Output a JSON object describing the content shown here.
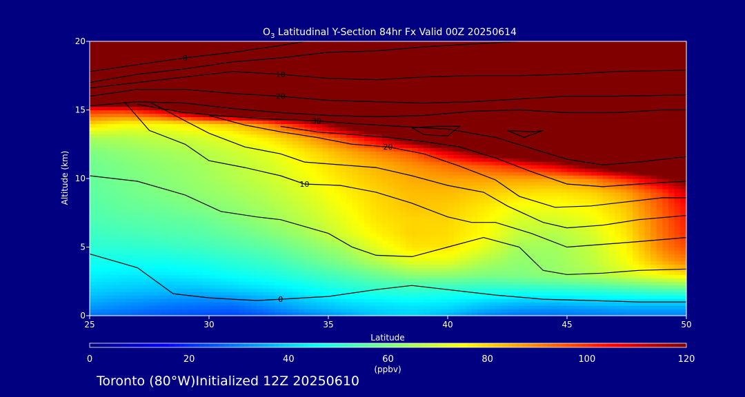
{
  "colors": {
    "background": "#000080",
    "text": "#ffffff",
    "contour": "#000000"
  },
  "chart_data": {
    "type": "heatmap",
    "title_prefix": "O",
    "title_sub": "3",
    "title_suffix": " Latitudinal Y-Section 84hr  Fx Valid 00Z 20250614",
    "xlabel": "Latitude",
    "ylabel": "Altitude (km)",
    "xlim": [
      25,
      50
    ],
    "ylim": [
      0,
      20
    ],
    "xticks": [
      25,
      30,
      35,
      40,
      45,
      50
    ],
    "yticks": [
      0,
      5,
      10,
      15,
      20
    ],
    "x": [
      25,
      26.5,
      28,
      29.5,
      31,
      32.5,
      34,
      35.5,
      37,
      38.5,
      40,
      41.5,
      43,
      44.5,
      46,
      47.5,
      49,
      50
    ],
    "y": [
      0,
      0.5,
      1,
      1.5,
      2,
      2.5,
      3,
      4,
      5,
      6,
      7,
      8,
      9,
      10,
      11,
      12,
      13,
      14,
      15,
      16,
      17,
      18,
      19,
      20
    ],
    "values": [
      [
        28,
        27,
        25,
        24,
        23,
        25,
        29,
        33,
        38,
        40,
        36,
        30,
        28,
        28,
        29,
        30,
        30,
        30
      ],
      [
        32,
        30,
        28,
        27,
        26,
        30,
        35,
        38,
        40,
        41,
        40,
        36,
        33,
        32,
        33,
        34,
        34,
        34
      ],
      [
        35,
        33,
        31,
        30,
        30,
        34,
        38,
        41,
        43,
        44,
        43,
        40,
        38,
        38,
        39,
        40,
        40,
        40
      ],
      [
        38,
        36,
        35,
        34,
        35,
        38,
        42,
        45,
        47,
        48,
        47,
        46,
        45,
        45,
        46,
        47,
        48,
        48
      ],
      [
        40,
        39,
        38,
        38,
        40,
        42,
        45,
        48,
        51,
        52,
        51,
        50,
        50,
        51,
        52,
        54,
        56,
        57
      ],
      [
        42,
        41,
        40,
        41,
        43,
        45,
        48,
        51,
        54,
        56,
        56,
        55,
        56,
        57,
        59,
        62,
        65,
        67
      ],
      [
        44,
        43,
        43,
        44,
        46,
        48,
        51,
        54,
        58,
        62,
        62,
        60,
        60,
        62,
        65,
        70,
        75,
        78
      ],
      [
        47,
        47,
        47,
        48,
        50,
        52,
        56,
        60,
        66,
        72,
        72,
        66,
        62,
        63,
        67,
        74,
        85,
        90
      ],
      [
        50,
        50,
        51,
        52,
        54,
        56,
        60,
        64,
        72,
        78,
        78,
        72,
        64,
        64,
        68,
        76,
        90,
        96
      ],
      [
        52,
        53,
        54,
        55,
        57,
        60,
        64,
        70,
        76,
        80,
        79,
        75,
        68,
        66,
        70,
        78,
        92,
        100
      ],
      [
        54,
        55,
        56,
        57,
        60,
        63,
        67,
        72,
        78,
        80,
        80,
        76,
        70,
        70,
        73,
        80,
        93,
        102
      ],
      [
        55,
        57,
        58,
        60,
        62,
        65,
        69,
        74,
        79,
        82,
        81,
        78,
        74,
        74,
        76,
        82,
        95,
        104
      ],
      [
        56,
        58,
        60,
        62,
        64,
        67,
        71,
        76,
        80,
        83,
        83,
        81,
        79,
        78,
        80,
        86,
        98,
        110
      ],
      [
        57,
        59,
        61,
        63,
        66,
        69,
        73,
        78,
        82,
        85,
        86,
        86,
        86,
        86,
        90,
        100,
        115,
        125
      ],
      [
        58,
        60,
        62,
        64,
        67,
        70,
        75,
        80,
        84,
        88,
        92,
        96,
        102,
        110,
        125,
        140,
        150,
        150
      ],
      [
        60,
        62,
        64,
        66,
        69,
        72,
        78,
        84,
        90,
        96,
        110,
        125,
        140,
        150,
        160,
        160,
        160,
        160
      ],
      [
        65,
        66,
        68,
        70,
        73,
        78,
        85,
        95,
        110,
        130,
        150,
        160,
        170,
        170,
        170,
        170,
        170,
        170
      ],
      [
        80,
        75,
        75,
        78,
        82,
        90,
        105,
        125,
        145,
        160,
        175,
        180,
        180,
        180,
        180,
        180,
        180,
        180
      ],
      [
        100,
        100,
        110,
        130,
        145,
        160,
        170,
        180,
        190,
        190,
        190,
        190,
        190,
        190,
        190,
        190,
        190,
        190
      ],
      [
        150,
        160,
        170,
        180,
        190,
        200,
        200,
        200,
        200,
        200,
        200,
        200,
        200,
        200,
        200,
        200,
        200,
        200
      ],
      [
        180,
        190,
        200,
        200,
        200,
        200,
        200,
        200,
        200,
        200,
        200,
        200,
        200,
        200,
        200,
        200,
        200,
        200
      ],
      [
        200,
        200,
        200,
        200,
        200,
        200,
        200,
        200,
        200,
        200,
        200,
        200,
        200,
        200,
        200,
        200,
        200,
        200
      ],
      [
        200,
        200,
        200,
        200,
        200,
        200,
        200,
        200,
        200,
        200,
        200,
        200,
        200,
        200,
        200,
        200,
        200,
        200
      ],
      [
        200,
        200,
        200,
        200,
        200,
        200,
        200,
        200,
        200,
        200,
        200,
        200,
        200,
        200,
        200,
        200,
        200,
        200
      ]
    ],
    "contours": [
      {
        "label": "0",
        "points": [
          [
            25,
            4.5
          ],
          [
            27,
            3.5
          ],
          [
            28.5,
            1.6
          ],
          [
            30,
            1.3
          ],
          [
            32,
            1.1
          ],
          [
            33,
            1.2
          ],
          [
            35,
            1.4
          ],
          [
            37,
            1.9
          ],
          [
            38.5,
            2.2
          ],
          [
            40,
            1.9
          ],
          [
            42,
            1.5
          ],
          [
            44,
            1.2
          ],
          [
            46,
            1.1
          ],
          [
            48,
            1.0
          ],
          [
            50,
            1.0
          ]
        ]
      },
      {
        "label": "",
        "points": [
          [
            25,
            10.2
          ],
          [
            27,
            9.8
          ],
          [
            29,
            8.8
          ],
          [
            30.5,
            7.6
          ],
          [
            32,
            7.2
          ],
          [
            33,
            7.0
          ],
          [
            35,
            6.0
          ],
          [
            36,
            5.0
          ],
          [
            37,
            4.4
          ],
          [
            38.5,
            4.3
          ],
          [
            40,
            5.0
          ],
          [
            41.5,
            5.7
          ],
          [
            43,
            5.0
          ],
          [
            44,
            3.3
          ],
          [
            45,
            3.0
          ],
          [
            46.5,
            3.1
          ],
          [
            48,
            3.3
          ],
          [
            50,
            3.4
          ]
        ]
      },
      {
        "label": "10",
        "points": [
          [
            26.5,
            15.5
          ],
          [
            27.5,
            13.5
          ],
          [
            29,
            12.5
          ],
          [
            30,
            11.3
          ],
          [
            31.5,
            10.8
          ],
          [
            33,
            10.2
          ],
          [
            34,
            9.6
          ],
          [
            35.5,
            9.5
          ],
          [
            37,
            9.0
          ],
          [
            38.5,
            8.2
          ],
          [
            40,
            7.2
          ],
          [
            41,
            6.8
          ],
          [
            42,
            6.8
          ],
          [
            43.5,
            6.0
          ],
          [
            45,
            5.0
          ],
          [
            46.5,
            5.2
          ],
          [
            48,
            5.4
          ],
          [
            50,
            5.7
          ]
        ]
      },
      {
        "label": "",
        "points": [
          [
            27.5,
            15.6
          ],
          [
            29,
            14.2
          ],
          [
            30,
            13.3
          ],
          [
            31.5,
            12.3
          ],
          [
            33,
            11.8
          ],
          [
            34,
            11.2
          ],
          [
            35.5,
            11.0
          ],
          [
            37,
            10.8
          ],
          [
            38.5,
            10.2
          ],
          [
            40,
            9.5
          ],
          [
            41.5,
            9.0
          ],
          [
            42.5,
            8.0
          ],
          [
            44,
            6.8
          ],
          [
            45,
            6.4
          ],
          [
            46.5,
            6.6
          ],
          [
            48,
            7.0
          ],
          [
            50,
            7.3
          ]
        ]
      },
      {
        "label": "20",
        "points": [
          [
            30,
            14.6
          ],
          [
            31.5,
            13.9
          ],
          [
            33,
            13.4
          ],
          [
            34.5,
            13.0
          ],
          [
            36,
            12.5
          ],
          [
            37.5,
            12.3
          ],
          [
            39,
            11.8
          ],
          [
            40.5,
            10.9
          ],
          [
            42,
            9.9
          ],
          [
            43,
            8.7
          ],
          [
            44.5,
            7.9
          ],
          [
            46,
            8.0
          ],
          [
            47.5,
            8.3
          ],
          [
            49,
            8.6
          ],
          [
            50,
            8.6
          ]
        ]
      },
      {
        "label": "",
        "points": [
          [
            33,
            13.8
          ],
          [
            34.5,
            13.4
          ],
          [
            36,
            13.2
          ],
          [
            37.5,
            13.0
          ],
          [
            39,
            12.7
          ],
          [
            40.5,
            12.3
          ],
          [
            42,
            11.5
          ],
          [
            43.5,
            10.5
          ],
          [
            45,
            9.6
          ],
          [
            46.5,
            9.4
          ],
          [
            48,
            9.6
          ],
          [
            50,
            9.8
          ]
        ]
      },
      {
        "label": "30",
        "points": [
          [
            27,
            15.4
          ],
          [
            29,
            14.8
          ],
          [
            31,
            14.5
          ],
          [
            33,
            14.3
          ],
          [
            34.5,
            14.2
          ],
          [
            36,
            14.0
          ],
          [
            38,
            13.8
          ],
          [
            40,
            13.6
          ],
          [
            42,
            13.0
          ],
          [
            43.5,
            12.2
          ],
          [
            45,
            11.4
          ],
          [
            46.5,
            11.0
          ],
          [
            48,
            11.2
          ],
          [
            50,
            11.6
          ]
        ]
      },
      {
        "label": "",
        "points": [
          [
            25,
            15.3
          ],
          [
            27,
            15.6
          ],
          [
            29,
            15.5
          ],
          [
            31,
            15.1
          ],
          [
            33,
            14.8
          ],
          [
            35,
            14.6
          ],
          [
            37,
            14.5
          ],
          [
            39,
            14.6
          ],
          [
            41,
            14.9
          ],
          [
            43,
            15.0
          ],
          [
            45,
            14.8
          ],
          [
            47,
            14.8
          ],
          [
            49,
            15.0
          ],
          [
            50,
            15.0
          ]
        ]
      },
      {
        "label": "20",
        "points": [
          [
            25,
            16.0
          ],
          [
            27,
            16.5
          ],
          [
            29,
            16.5
          ],
          [
            31,
            16.2
          ],
          [
            33,
            16.0
          ],
          [
            35,
            15.7
          ],
          [
            37,
            15.6
          ],
          [
            39,
            15.5
          ],
          [
            41,
            15.6
          ],
          [
            43,
            15.8
          ],
          [
            45,
            16.0
          ],
          [
            47,
            16.0
          ],
          [
            50,
            16.1
          ]
        ]
      },
      {
        "label": "10",
        "points": [
          [
            25,
            16.6
          ],
          [
            27,
            17.0
          ],
          [
            29,
            17.4
          ],
          [
            31,
            17.8
          ],
          [
            33,
            17.6
          ],
          [
            35,
            17.3
          ],
          [
            37,
            17.2
          ],
          [
            39,
            17.4
          ],
          [
            41,
            17.5
          ],
          [
            43,
            17.5
          ],
          [
            45,
            17.6
          ],
          [
            47,
            17.8
          ],
          [
            50,
            17.9
          ]
        ]
      },
      {
        "label": "",
        "points": [
          [
            25,
            17.0
          ],
          [
            27,
            17.6
          ],
          [
            29,
            18.0
          ],
          [
            31,
            18.5
          ],
          [
            33,
            18.8
          ],
          [
            35,
            19.2
          ],
          [
            37,
            19.3
          ],
          [
            39,
            19.6
          ],
          [
            41,
            19.8
          ],
          [
            43,
            20.0
          ]
        ]
      },
      {
        "label": "0",
        "points": [
          [
            25,
            17.8
          ],
          [
            27,
            18.3
          ],
          [
            29,
            18.8
          ],
          [
            31,
            19.2
          ],
          [
            33,
            19.7
          ],
          [
            34,
            20.0
          ]
        ]
      },
      {
        "label": "",
        "points": [
          [
            38.5,
            13.7
          ],
          [
            39.5,
            13.8
          ],
          [
            40.5,
            13.8
          ],
          [
            40,
            13.1
          ],
          [
            39,
            13.2
          ],
          [
            38.5,
            13.7
          ]
        ]
      },
      {
        "label": "",
        "points": [
          [
            42.5,
            13.5
          ],
          [
            43.5,
            13.4
          ],
          [
            44,
            13.5
          ],
          [
            43.2,
            13.0
          ],
          [
            42.5,
            13.5
          ]
        ]
      }
    ],
    "colorbar": {
      "min": 0,
      "max": 120,
      "ticks": [
        0,
        20,
        40,
        60,
        80,
        100,
        120
      ],
      "label": "(ppbv)"
    },
    "footer": "Toronto (80°W)Initialized 12Z 20250610"
  }
}
